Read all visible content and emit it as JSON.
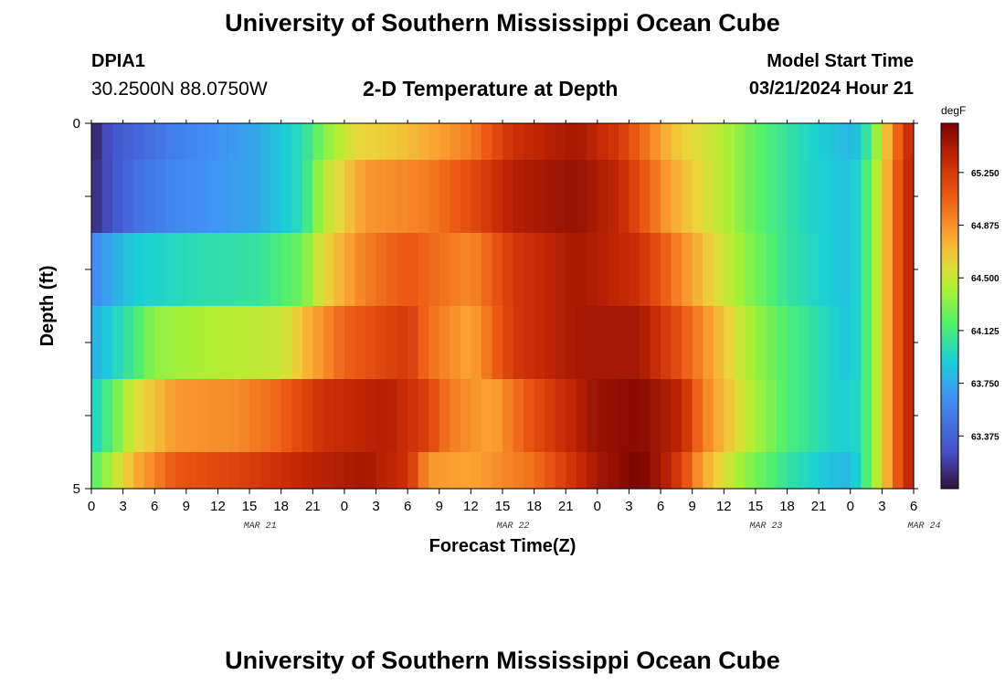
{
  "header": {
    "title": "University of Southern Mississippi Ocean Cube",
    "station": "DPIA1",
    "coords": "30.2500N  88.0750W",
    "subtitle": "2-D Temperature at Depth",
    "model_start_label": "Model Start Time",
    "model_start_value": "03/21/2024 Hour 21"
  },
  "footer": {
    "title": "University of Southern Mississippi Ocean Cube"
  },
  "chart_data": {
    "type": "heatmap",
    "title": "2-D Temperature at Depth",
    "xlabel": "Forecast Time(Z)",
    "ylabel": "Depth (ft)",
    "x_ticks": [
      "0",
      "3",
      "6",
      "9",
      "12",
      "15",
      "18",
      "21",
      "0",
      "3",
      "6",
      "9",
      "12",
      "15",
      "18",
      "21",
      "0",
      "3",
      "6",
      "9",
      "12",
      "15",
      "18",
      "21",
      "0",
      "3",
      "6"
    ],
    "day_labels": [
      {
        "label": "MAR 21",
        "hour": 16
      },
      {
        "label": "MAR 22",
        "hour": 40
      },
      {
        "label": "MAR 23",
        "hour": 64
      },
      {
        "label": "MAR 24",
        "hour": 79
      }
    ],
    "y_tick_labels": [
      {
        "depth": 0,
        "label": "0"
      },
      {
        "depth": 5,
        "label": "5"
      }
    ],
    "xlim": [
      0,
      78
    ],
    "ylim": [
      0,
      5
    ],
    "colorbar": {
      "unit": "degF",
      "range": [
        63.0,
        65.6
      ],
      "ticks": [
        "63.375",
        "63.750",
        "64.125",
        "64.500",
        "64.875",
        "65.250"
      ],
      "tick_values": [
        63.375,
        63.75,
        64.125,
        64.5,
        64.875,
        65.25
      ]
    },
    "depth_layers": [
      {
        "depth": 0.25,
        "keyframes": [
          [
            0,
            63.05
          ],
          [
            2,
            63.3
          ],
          [
            8,
            63.55
          ],
          [
            16,
            63.75
          ],
          [
            20,
            64.0
          ],
          [
            22,
            64.3
          ],
          [
            25,
            64.6
          ],
          [
            30,
            64.7
          ],
          [
            36,
            64.95
          ],
          [
            40,
            65.3
          ],
          [
            46,
            65.45
          ],
          [
            50,
            65.25
          ],
          [
            52,
            65.05
          ],
          [
            55,
            64.7
          ],
          [
            60,
            64.45
          ],
          [
            64,
            64.15
          ],
          [
            68,
            63.95
          ],
          [
            72,
            63.8
          ],
          [
            73,
            63.9
          ],
          [
            74,
            64.2
          ],
          [
            75,
            64.55
          ],
          [
            76,
            64.9
          ],
          [
            77,
            65.2
          ],
          [
            78,
            65.4
          ]
        ]
      },
      {
        "depth": 1.0,
        "keyframes": [
          [
            0,
            63.1
          ],
          [
            4,
            63.45
          ],
          [
            8,
            63.6
          ],
          [
            16,
            63.75
          ],
          [
            20,
            64.0
          ],
          [
            22,
            64.45
          ],
          [
            26,
            64.85
          ],
          [
            32,
            64.95
          ],
          [
            36,
            65.15
          ],
          [
            40,
            65.4
          ],
          [
            46,
            65.5
          ],
          [
            50,
            65.35
          ],
          [
            52,
            65.15
          ],
          [
            55,
            64.8
          ],
          [
            60,
            64.45
          ],
          [
            64,
            64.15
          ],
          [
            68,
            63.95
          ],
          [
            72,
            63.85
          ],
          [
            73,
            64.0
          ],
          [
            74,
            64.3
          ],
          [
            75,
            64.6
          ],
          [
            76,
            64.95
          ],
          [
            77,
            65.25
          ],
          [
            78,
            65.4
          ]
        ]
      },
      {
        "depth": 2.0,
        "keyframes": [
          [
            0,
            63.6
          ],
          [
            4,
            63.9
          ],
          [
            10,
            64.0
          ],
          [
            16,
            64.05
          ],
          [
            20,
            64.25
          ],
          [
            22,
            64.6
          ],
          [
            26,
            64.95
          ],
          [
            30,
            65.1
          ],
          [
            36,
            64.9
          ],
          [
            40,
            65.25
          ],
          [
            46,
            65.45
          ],
          [
            52,
            65.3
          ],
          [
            55,
            65.0
          ],
          [
            58,
            64.7
          ],
          [
            62,
            64.35
          ],
          [
            66,
            64.05
          ],
          [
            70,
            63.9
          ],
          [
            72,
            63.85
          ],
          [
            73,
            64.0
          ],
          [
            74,
            64.3
          ],
          [
            75,
            64.6
          ],
          [
            76,
            64.95
          ],
          [
            77,
            65.25
          ],
          [
            78,
            65.4
          ]
        ]
      },
      {
        "depth": 3.0,
        "keyframes": [
          [
            0,
            63.75
          ],
          [
            4,
            64.1
          ],
          [
            6,
            64.35
          ],
          [
            12,
            64.45
          ],
          [
            18,
            64.5
          ],
          [
            20,
            64.7
          ],
          [
            24,
            65.05
          ],
          [
            30,
            65.25
          ],
          [
            32,
            65.0
          ],
          [
            36,
            64.8
          ],
          [
            40,
            65.25
          ],
          [
            46,
            65.45
          ],
          [
            52,
            65.45
          ],
          [
            55,
            65.2
          ],
          [
            58,
            64.9
          ],
          [
            62,
            64.45
          ],
          [
            66,
            64.15
          ],
          [
            70,
            63.95
          ],
          [
            72,
            63.85
          ],
          [
            73,
            64.0
          ],
          [
            74,
            64.3
          ],
          [
            75,
            64.6
          ],
          [
            76,
            64.95
          ],
          [
            77,
            65.25
          ],
          [
            78,
            65.4
          ]
        ]
      },
      {
        "depth": 4.0,
        "keyframes": [
          [
            0,
            63.9
          ],
          [
            2,
            64.2
          ],
          [
            4,
            64.55
          ],
          [
            8,
            64.85
          ],
          [
            14,
            64.9
          ],
          [
            18,
            65.05
          ],
          [
            22,
            65.3
          ],
          [
            28,
            65.4
          ],
          [
            32,
            65.2
          ],
          [
            34,
            64.95
          ],
          [
            38,
            64.8
          ],
          [
            42,
            65.15
          ],
          [
            48,
            65.5
          ],
          [
            52,
            65.55
          ],
          [
            56,
            65.35
          ],
          [
            58,
            64.95
          ],
          [
            62,
            64.5
          ],
          [
            66,
            64.15
          ],
          [
            70,
            63.95
          ],
          [
            72,
            63.9
          ],
          [
            73,
            64.0
          ],
          [
            74,
            64.3
          ],
          [
            75,
            64.6
          ],
          [
            76,
            64.95
          ],
          [
            77,
            65.25
          ],
          [
            78,
            65.4
          ]
        ]
      },
      {
        "depth": 4.75,
        "keyframes": [
          [
            0,
            64.15
          ],
          [
            2,
            64.45
          ],
          [
            4,
            64.75
          ],
          [
            8,
            65.1
          ],
          [
            14,
            65.2
          ],
          [
            20,
            65.35
          ],
          [
            26,
            65.45
          ],
          [
            30,
            65.3
          ],
          [
            32,
            64.85
          ],
          [
            36,
            64.8
          ],
          [
            42,
            65.0
          ],
          [
            48,
            65.45
          ],
          [
            52,
            65.6
          ],
          [
            54,
            65.45
          ],
          [
            56,
            65.2
          ],
          [
            58,
            64.8
          ],
          [
            62,
            64.35
          ],
          [
            66,
            64.05
          ],
          [
            70,
            63.85
          ],
          [
            72,
            63.8
          ],
          [
            73,
            64.0
          ],
          [
            74,
            64.3
          ],
          [
            75,
            64.6
          ],
          [
            76,
            64.95
          ],
          [
            77,
            65.25
          ],
          [
            78,
            65.4
          ]
        ]
      }
    ]
  }
}
